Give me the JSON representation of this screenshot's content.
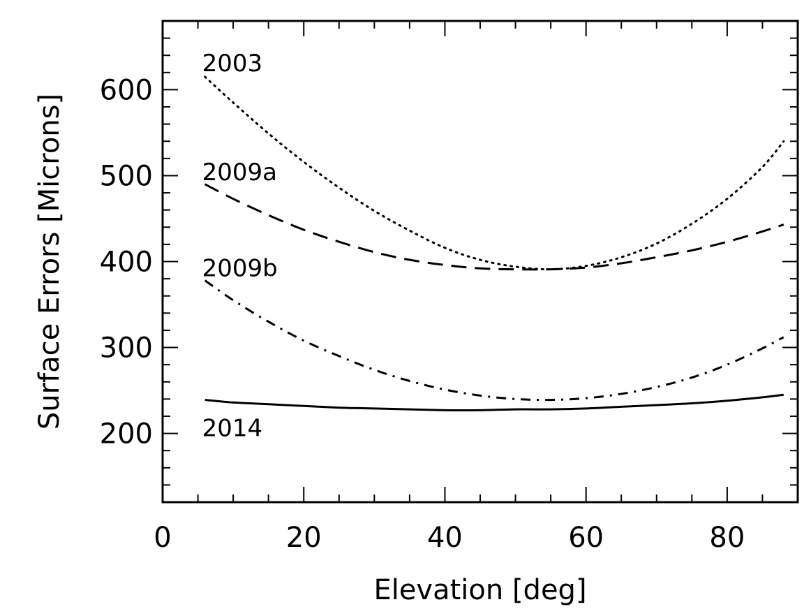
{
  "chart_data": {
    "type": "line",
    "title": "",
    "xlabel": "Elevation [deg]",
    "ylabel": "Surface Errors [Microns]",
    "xlim": [
      0,
      90
    ],
    "ylim": [
      120,
      680
    ],
    "x_ticks": [
      0,
      20,
      40,
      60,
      80
    ],
    "x_tick_labels": [
      "0",
      "20",
      "40",
      "60",
      "80"
    ],
    "x_minor_step": 5,
    "y_ticks": [
      200,
      300,
      400,
      500,
      600
    ],
    "y_tick_labels": [
      "200",
      "300",
      "400",
      "500",
      "600"
    ],
    "y_minor_step": 20,
    "grid": false,
    "x": [
      6,
      10,
      15,
      20,
      25,
      30,
      35,
      40,
      45,
      50,
      55,
      60,
      65,
      70,
      75,
      80,
      85,
      88
    ],
    "series": [
      {
        "name": "2003",
        "label": "2003",
        "linestyle": "dotted",
        "values": [
          615,
          585,
          549,
          516,
          486,
          459,
          436,
          416,
          402,
          394,
          391,
          395,
          405,
          421,
          444,
          473,
          510,
          540
        ]
      },
      {
        "name": "2009a",
        "label": "2009a",
        "linestyle": "dashed",
        "values": [
          490,
          473,
          454,
          437,
          423,
          411,
          402,
          396,
          392,
          391,
          391,
          393,
          398,
          405,
          413,
          423,
          435,
          443
        ]
      },
      {
        "name": "2009b",
        "label": "2009b",
        "linestyle": "dashdot",
        "values": [
          378,
          355,
          330,
          308,
          290,
          274,
          261,
          251,
          244,
          240,
          239,
          241,
          246,
          254,
          265,
          280,
          299,
          312
        ]
      },
      {
        "name": "2014",
        "label": "2014",
        "linestyle": "solid",
        "values": [
          239,
          236,
          234,
          232,
          230,
          229,
          228,
          227,
          227,
          228,
          228,
          229,
          231,
          233,
          235,
          238,
          242,
          245
        ]
      }
    ],
    "annotations": [
      {
        "text": "2003",
        "series": "2003"
      },
      {
        "text": "2009a",
        "series": "2009a"
      },
      {
        "text": "2009b",
        "series": "2009b"
      },
      {
        "text": "2014",
        "series": "2014"
      }
    ]
  }
}
